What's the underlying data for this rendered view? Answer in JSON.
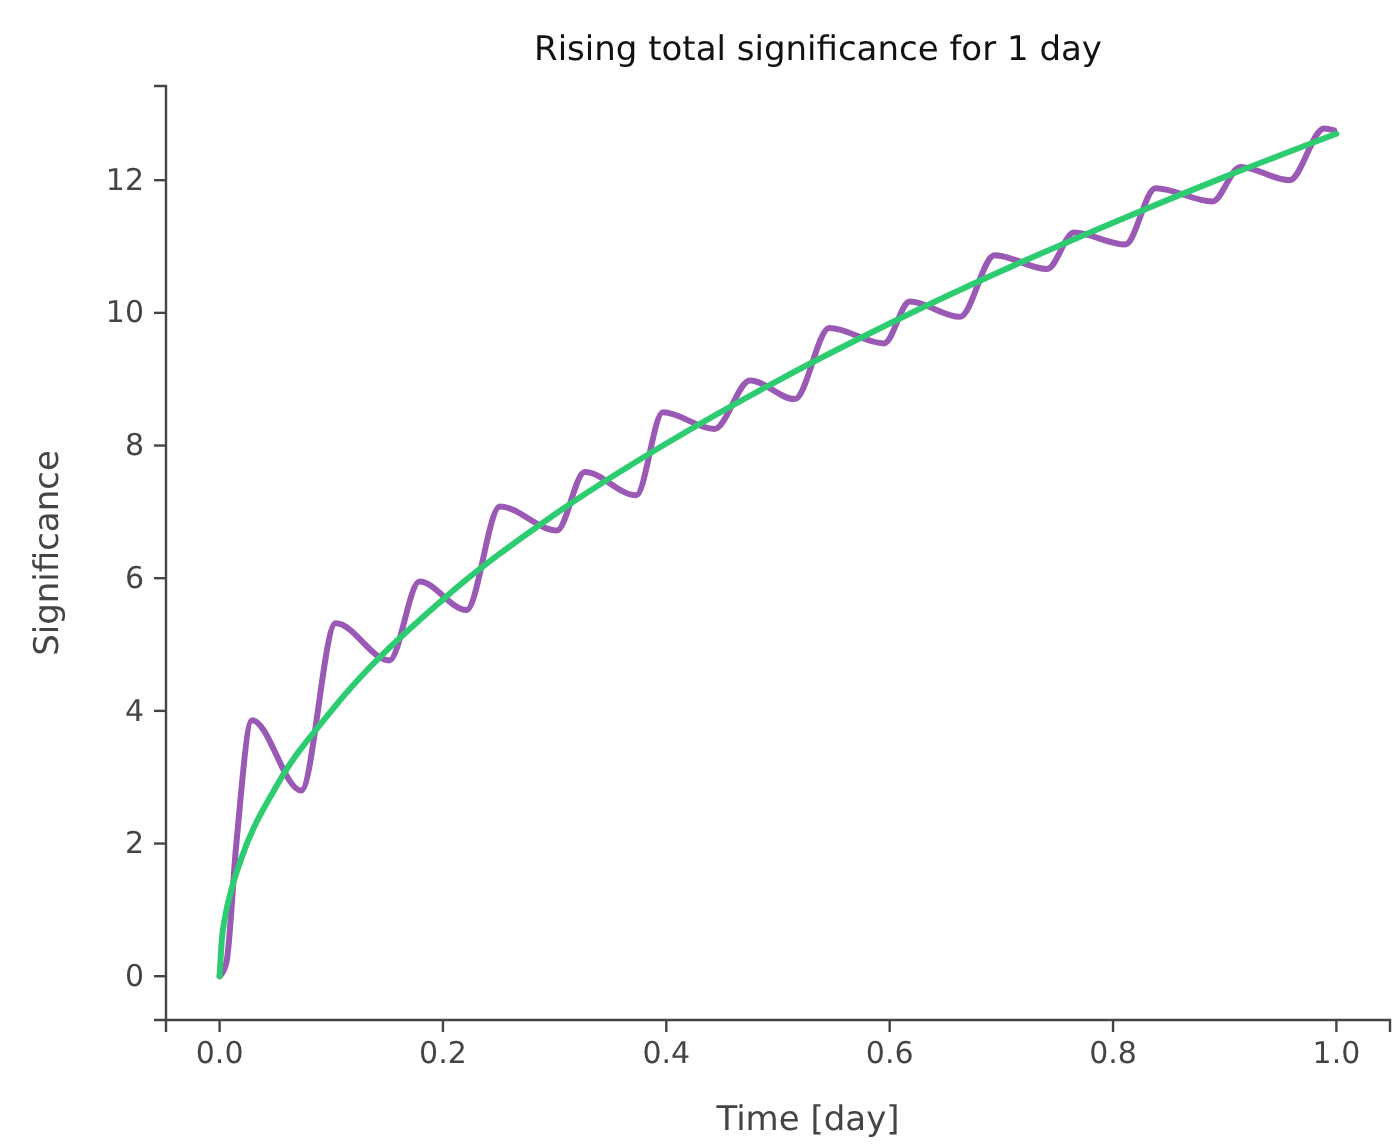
{
  "chart_data": {
    "type": "line",
    "title": "Rising total significance for 1 day",
    "xlabel": "Time [day]",
    "ylabel": "Significance",
    "xlim": [
      -0.048,
      1.048
    ],
    "ylim": [
      -0.66,
      13.42
    ],
    "xticks": [
      {
        "value": 0,
        "label": "0.0"
      },
      {
        "value": 0.2,
        "label": "0.2"
      },
      {
        "value": 0.4,
        "label": "0.4"
      },
      {
        "value": 0.6,
        "label": "0.6"
      },
      {
        "value": 0.8,
        "label": "0.8"
      },
      {
        "value": 1,
        "label": "1.0"
      }
    ],
    "yticks": [
      0,
      2,
      4,
      6,
      8,
      10,
      12
    ],
    "grid": false,
    "marker": "none",
    "line_style": "solid",
    "series": [
      {
        "color": "#9b59b6",
        "x": [
          0,
          0.006,
          0.015,
          0.029,
          0.073,
          0.104,
          0.152,
          0.179,
          0.221,
          0.251,
          0.302,
          0.327,
          0.373,
          0.397,
          0.443,
          0.475,
          0.515,
          0.546,
          0.595,
          0.618,
          0.663,
          0.694,
          0.741,
          0.765,
          0.811,
          0.838,
          0.889,
          0.914,
          0.958,
          0.989,
          0.998
        ],
        "values": [
          0,
          0.2,
          2.0,
          3.86,
          2.8,
          5.32,
          4.76,
          5.95,
          5.52,
          7.08,
          6.72,
          7.6,
          7.25,
          8.5,
          8.25,
          8.98,
          8.7,
          9.77,
          9.54,
          10.17,
          9.94,
          10.87,
          10.66,
          11.21,
          11.03,
          11.88,
          11.68,
          12.2,
          12.0,
          12.78,
          12.75
        ]
      },
      {
        "color": "#2ecc71",
        "x": [
          0,
          0.002,
          0.005,
          0.01,
          0.02,
          0.05,
          0.1,
          0.2,
          0.3,
          0.4,
          0.5,
          0.6,
          0.7,
          0.8,
          0.9,
          1.0
        ],
        "values": [
          0,
          0.55,
          0.9,
          1.27,
          1.8,
          2.84,
          4.0,
          5.68,
          6.96,
          8.03,
          8.98,
          9.84,
          10.63,
          11.36,
          12.05,
          12.7
        ]
      }
    ]
  }
}
